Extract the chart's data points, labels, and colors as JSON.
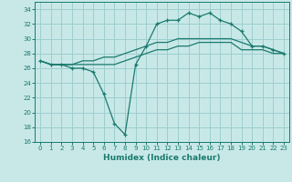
{
  "x": [
    0,
    1,
    2,
    3,
    4,
    5,
    6,
    7,
    8,
    9,
    10,
    11,
    12,
    13,
    14,
    15,
    16,
    17,
    18,
    19,
    20,
    21,
    22,
    23
  ],
  "line1": [
    27,
    26.5,
    26.5,
    26.5,
    26.5,
    26.5,
    26.5,
    26.5,
    27,
    27.5,
    28,
    28.5,
    28.5,
    29,
    29,
    29.5,
    29.5,
    29.5,
    29.5,
    28.5,
    28.5,
    28.5,
    28,
    28
  ],
  "line2": [
    27,
    26.5,
    26.5,
    26.5,
    27,
    27,
    27.5,
    27.5,
    28,
    28.5,
    29,
    29.5,
    29.5,
    30,
    30,
    30,
    30,
    30,
    30,
    29.5,
    29,
    29,
    28.5,
    28
  ],
  "line3": [
    27,
    26.5,
    26.5,
    26,
    26,
    25.5,
    22.5,
    18.5,
    17,
    26.5,
    29,
    32,
    32.5,
    32.5,
    33.5,
    33,
    33.5,
    32.5,
    32,
    31,
    29,
    29,
    28.5,
    28
  ],
  "color": "#1a7a6e",
  "bg_color": "#c8e8e8",
  "grid_color": "#9ecece",
  "xlabel": "Humidex (Indice chaleur)",
  "ylim": [
    16,
    35
  ],
  "xlim": [
    -0.5,
    23.5
  ],
  "yticks": [
    16,
    18,
    20,
    22,
    24,
    26,
    28,
    30,
    32,
    34
  ],
  "xticks": [
    0,
    1,
    2,
    3,
    4,
    5,
    6,
    7,
    8,
    9,
    10,
    11,
    12,
    13,
    14,
    15,
    16,
    17,
    18,
    19,
    20,
    21,
    22,
    23
  ]
}
